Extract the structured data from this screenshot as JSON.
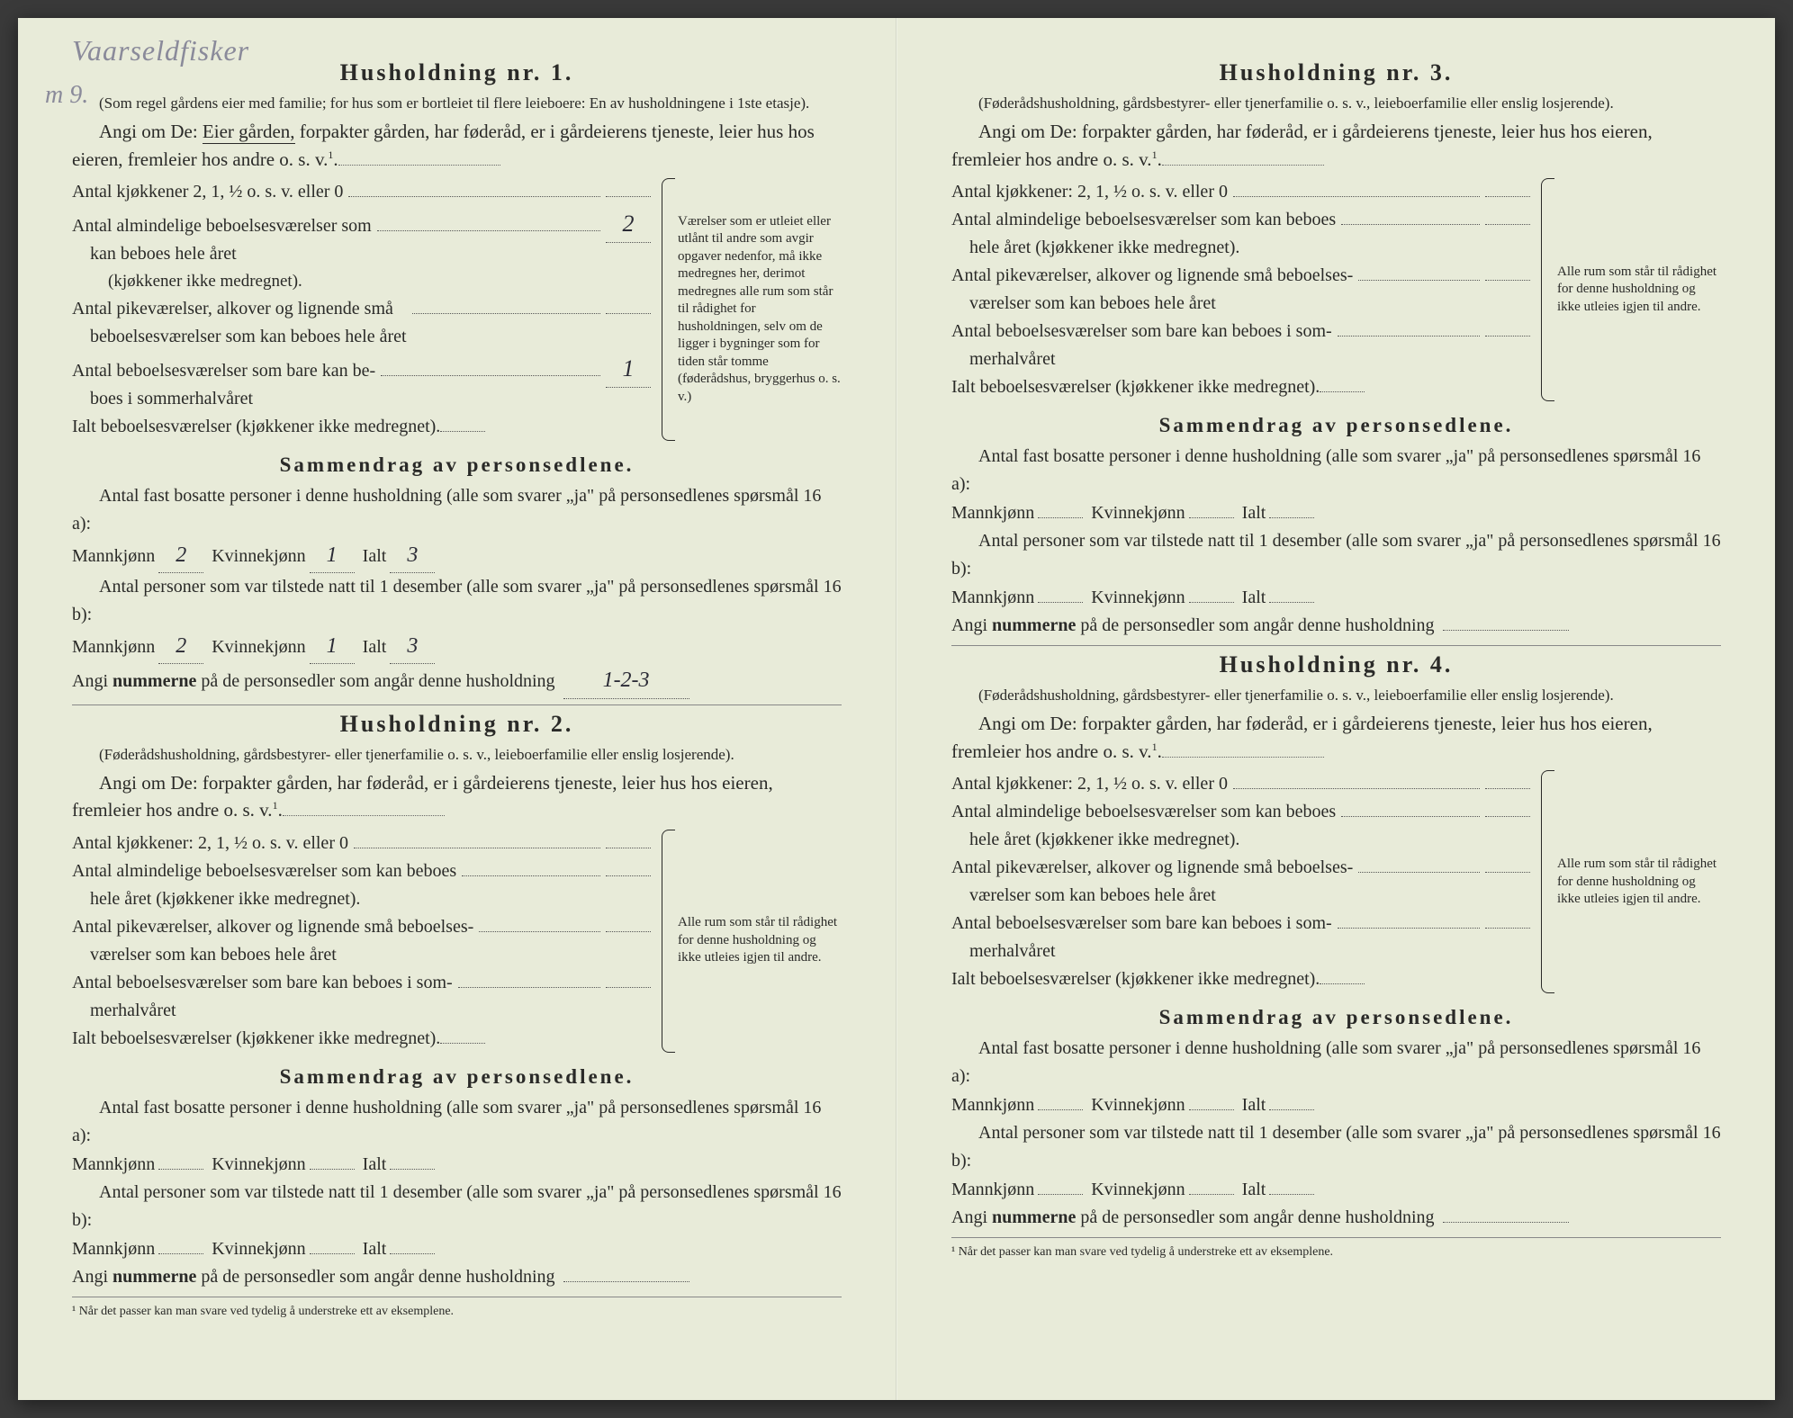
{
  "handwriting": {
    "top": "Vaarseldfisker",
    "side": "m 9."
  },
  "households": [
    {
      "title": "Husholdning nr. 1.",
      "intro_note": "(Som regel gårdens eier med familie; for hus som er bortleiet til flere leieboere: En av husholdningene i 1ste etasje).",
      "angi_prefix": "Angi om De:",
      "angi_underlined": "Eier gården,",
      "angi_rest": "forpakter gården, har føderåd, er i gårdeierens tjeneste, leier hus hos eieren, fremleier hos andre o. s. v.",
      "room_rows": [
        {
          "label": "Antal kjøkkener 2, 1, ½ o. s. v. eller 0",
          "val": ""
        },
        {
          "label": "Antal almindelige beboelsesværelser som\n    kan beboes hele året",
          "sublabel": "(kjøkkener ikke medregnet).",
          "val": "2"
        },
        {
          "label": "Antal pikeværelser, alkover og lignende små\n    beboelsesværelser som kan beboes hele året",
          "val": ""
        },
        {
          "label": "Antal beboelsesværelser som bare kan be-\n    boes i sommerhalvåret",
          "val": "1"
        },
        {
          "label": "Ialt beboelsesværelser (kjøkkener ikke medregnet).",
          "val": ""
        }
      ],
      "brace_text": "Værelser som er utleiet eller utlånt til andre som avgir opgaver nedenfor, må ikke medregnes her, derimot medregnes alle rum som står til rådighet for husholdningen, selv om de ligger i bygninger som for tiden står tomme (føderådshus, bryggerhus o. s. v.)",
      "summary_title": "Sammendrag av personsedlene.",
      "summary_a_pre": "Antal fast bosatte personer i denne husholdning (alle som svarer „ja\" på personsedlenes spørsmål 16 a):",
      "summary_b_pre": "Antal personer som var tilstede natt til 1 desember (alle som svarer „ja\" på personsedlenes spørsmål 16 b):",
      "mann_label": "Mannkjønn",
      "kvinne_label": "Kvinnekjønn",
      "ialt_label": "Ialt",
      "vals_a": {
        "m": "2",
        "k": "1",
        "i": "3"
      },
      "vals_b": {
        "m": "2",
        "k": "1",
        "i": "3"
      },
      "angi_num": "Angi nummerne på de personsedler som angår denne husholdning",
      "angi_num_val": "1-2-3"
    },
    {
      "title": "Husholdning nr. 2.",
      "intro_note": "(Føderådshusholdning, gårdsbestyrer- eller tjenerfamilie o. s. v., leieboerfamilie eller enslig losjerende).",
      "angi_prefix": "Angi om De:",
      "angi_rest": "forpakter gården, har føderåd, er i gårdeierens tjeneste, leier hus hos eieren, fremleier hos andre o. s. v.",
      "room_rows": [
        {
          "label": "Antal kjøkkener: 2, 1, ½ o. s. v. eller 0",
          "val": ""
        },
        {
          "label": "Antal almindelige beboelsesværelser som kan beboes\n    hele året (kjøkkener ikke medregnet).",
          "val": ""
        },
        {
          "label": "Antal pikeværelser, alkover og lignende små beboelses-\n    værelser som kan beboes hele året",
          "val": ""
        },
        {
          "label": "Antal beboelsesværelser som bare kan beboes i som-\n    merhalvåret",
          "val": ""
        },
        {
          "label": "Ialt beboelsesværelser (kjøkkener ikke medregnet).",
          "val": ""
        }
      ],
      "brace_text": "Alle rum som står til rådighet for denne husholdning og ikke utleies igjen til andre.",
      "summary_title": "Sammendrag av personsedlene.",
      "summary_a_pre": "Antal fast bosatte personer i denne husholdning (alle som svarer „ja\" på personsedlenes spørsmål 16 a):",
      "summary_b_pre": "Antal personer som var tilstede natt til 1 desember (alle som svarer „ja\" på personsedlenes spørsmål 16 b):",
      "mann_label": "Mannkjønn",
      "kvinne_label": "Kvinnekjønn",
      "ialt_label": "Ialt",
      "vals_a": {
        "m": "",
        "k": "",
        "i": ""
      },
      "vals_b": {
        "m": "",
        "k": "",
        "i": ""
      },
      "angi_num": "Angi nummerne på de personsedler som angår denne husholdning",
      "angi_num_val": ""
    },
    {
      "title": "Husholdning nr. 3.",
      "intro_note": "(Føderådshusholdning, gårdsbestyrer- eller tjenerfamilie o. s. v., leieboerfamilie eller enslig losjerende).",
      "angi_prefix": "Angi om De:",
      "angi_rest": "forpakter gården, har føderåd, er i gårdeierens tjeneste, leier hus hos eieren, fremleier hos andre o. s. v.",
      "room_rows": [
        {
          "label": "Antal kjøkkener: 2, 1, ½ o. s. v. eller 0",
          "val": ""
        },
        {
          "label": "Antal almindelige beboelsesværelser som kan beboes\n    hele året (kjøkkener ikke medregnet).",
          "val": ""
        },
        {
          "label": "Antal pikeværelser, alkover og lignende små beboelses-\n    værelser som kan beboes hele året",
          "val": ""
        },
        {
          "label": "Antal beboelsesværelser som bare kan beboes i som-\n    merhalvåret",
          "val": ""
        },
        {
          "label": "Ialt beboelsesværelser (kjøkkener ikke medregnet).",
          "val": ""
        }
      ],
      "brace_text": "Alle rum som står til rådighet for denne husholdning og ikke utleies igjen til andre.",
      "summary_title": "Sammendrag av personsedlene.",
      "summary_a_pre": "Antal fast bosatte personer i denne husholdning (alle som svarer „ja\" på personsedlenes spørsmål 16 a):",
      "summary_b_pre": "Antal personer som var tilstede natt til 1 desember (alle som svarer „ja\" på personsedlenes spørsmål 16 b):",
      "mann_label": "Mannkjønn",
      "kvinne_label": "Kvinnekjønn",
      "ialt_label": "Ialt",
      "vals_a": {
        "m": "",
        "k": "",
        "i": ""
      },
      "vals_b": {
        "m": "",
        "k": "",
        "i": ""
      },
      "angi_num": "Angi nummerne på de personsedler som angår denne husholdning",
      "angi_num_val": ""
    },
    {
      "title": "Husholdning nr. 4.",
      "intro_note": "(Føderådshusholdning, gårdsbestyrer- eller tjenerfamilie o. s. v., leieboerfamilie eller enslig losjerende).",
      "angi_prefix": "Angi om De:",
      "angi_rest": "forpakter gården, har føderåd, er i gårdeierens tjeneste, leier hus hos eieren, fremleier hos andre o. s. v.",
      "room_rows": [
        {
          "label": "Antal kjøkkener: 2, 1, ½ o. s. v. eller 0",
          "val": ""
        },
        {
          "label": "Antal almindelige beboelsesværelser som kan beboes\n    hele året (kjøkkener ikke medregnet).",
          "val": ""
        },
        {
          "label": "Antal pikeværelser, alkover og lignende små beboelses-\n    værelser som kan beboes hele året",
          "val": ""
        },
        {
          "label": "Antal beboelsesværelser som bare kan beboes i som-\n    merhalvåret",
          "val": ""
        },
        {
          "label": "Ialt beboelsesværelser (kjøkkener ikke medregnet).",
          "val": ""
        }
      ],
      "brace_text": "Alle rum som står til rådighet for denne husholdning og ikke utleies igjen til andre.",
      "summary_title": "Sammendrag av personsedlene.",
      "summary_a_pre": "Antal fast bosatte personer i denne husholdning (alle som svarer „ja\" på personsedlenes spørsmål 16 a):",
      "summary_b_pre": "Antal personer som var tilstede natt til 1 desember (alle som svarer „ja\" på personsedlenes spørsmål 16 b):",
      "mann_label": "Mannkjønn",
      "kvinne_label": "Kvinnekjønn",
      "ialt_label": "Ialt",
      "vals_a": {
        "m": "",
        "k": "",
        "i": ""
      },
      "vals_b": {
        "m": "",
        "k": "",
        "i": ""
      },
      "angi_num": "Angi nummerne på de personsedler som angår denne husholdning",
      "angi_num_val": ""
    }
  ],
  "footnote": "¹ Når det passer kan man svare ved tydelig å understreke ett av eksemplene."
}
